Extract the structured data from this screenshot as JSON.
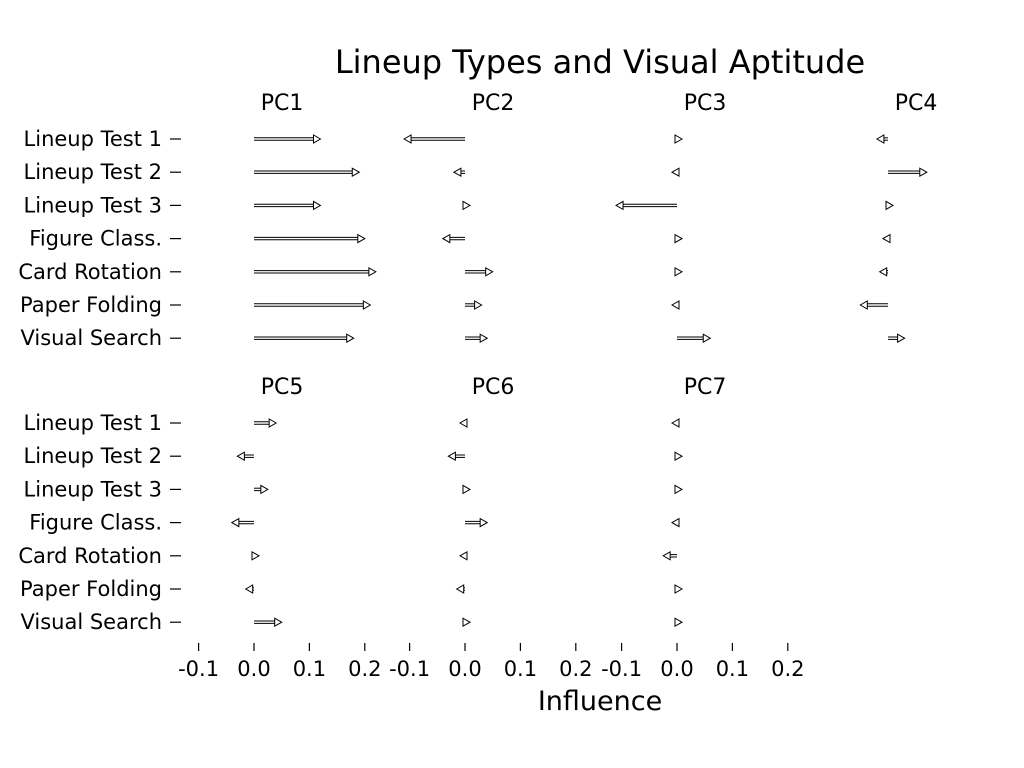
{
  "chart_data": {
    "type": "arrow-dot-plot",
    "title": "Lineup Types and Visual Aptitude",
    "xlabel": "Influence",
    "rows": [
      "Lineup Test 1",
      "Lineup Test 2",
      "Lineup Test 3",
      "Figure Class.",
      "Card Rotation",
      "Paper Folding",
      "Visual Search"
    ],
    "xlim": [
      -0.1,
      0.2
    ],
    "xticks": [
      -0.1,
      0.0,
      0.1,
      0.2
    ],
    "xtick_labels": [
      "-0.1",
      "0.0",
      "0.1",
      "0.2"
    ],
    "panels": [
      {
        "name": "PC1",
        "values": [
          0.12,
          0.19,
          0.12,
          0.2,
          0.22,
          0.21,
          0.18
        ]
      },
      {
        "name": "PC2",
        "values": [
          -0.11,
          -0.02,
          0.01,
          -0.04,
          0.05,
          0.03,
          0.04
        ]
      },
      {
        "name": "PC3",
        "values": [
          0.005,
          -0.005,
          -0.11,
          0.01,
          0.005,
          -0.005,
          0.06
        ]
      },
      {
        "name": "PC4",
        "values": [
          -0.02,
          0.07,
          0.005,
          -0.005,
          -0.015,
          -0.05,
          0.03
        ]
      },
      {
        "name": "PC5",
        "values": [
          0.04,
          -0.03,
          0.025,
          -0.04,
          0.005,
          -0.015,
          0.05
        ]
      },
      {
        "name": "PC6",
        "values": [
          -0.01,
          -0.03,
          0.01,
          0.04,
          -0.01,
          -0.015,
          0.01
        ]
      },
      {
        "name": "PC7",
        "values": [
          -0.005,
          0.005,
          0.005,
          -0.005,
          -0.025,
          0.01,
          0.005
        ]
      }
    ]
  }
}
